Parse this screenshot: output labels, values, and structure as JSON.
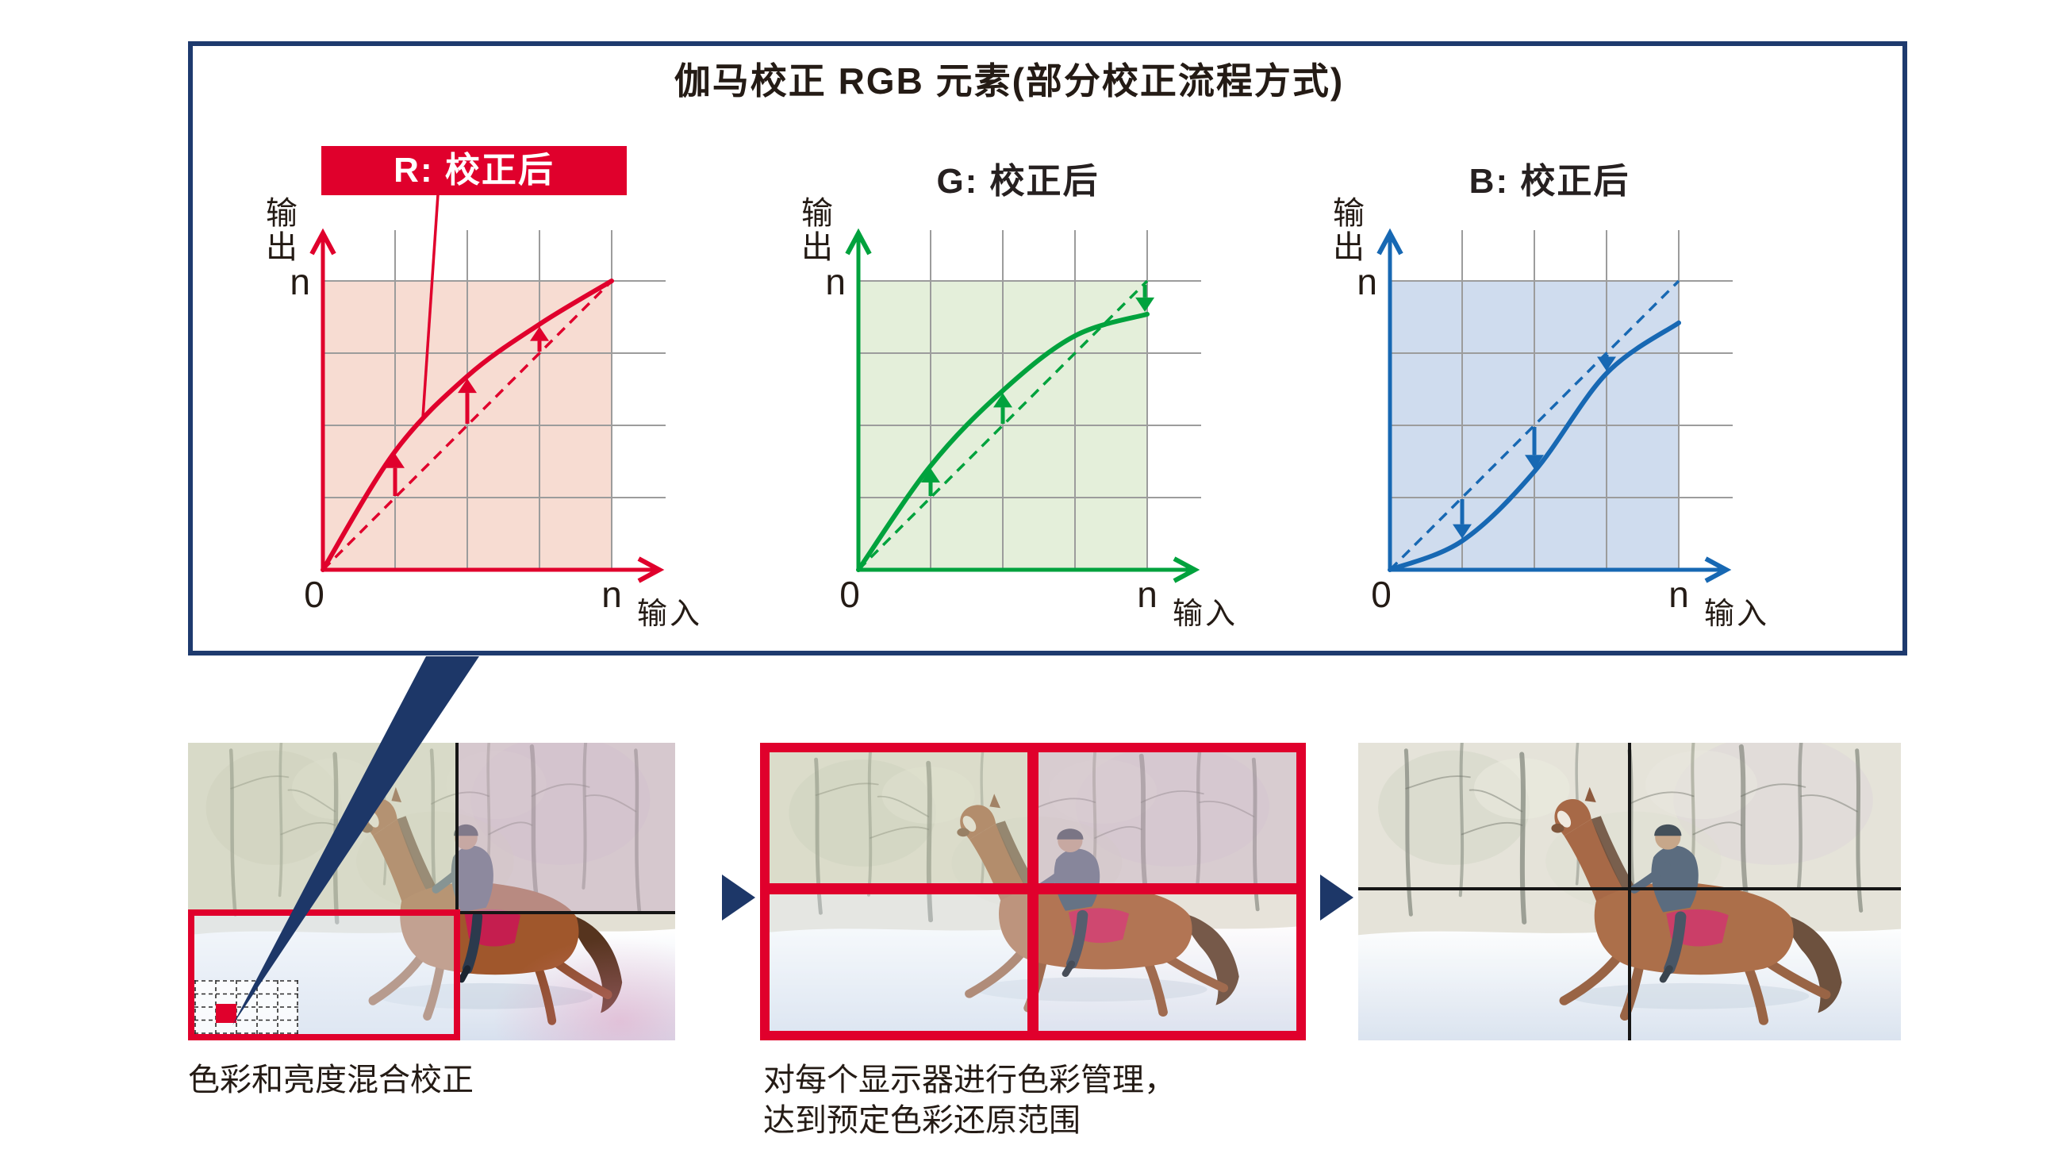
{
  "header": {
    "title": "伽马校正 RGB 元素(部分校正流程方式)"
  },
  "palette": {
    "frame_navy": "#1e3a6e",
    "pointer_navy": "#1d3768",
    "highlight_red": "#e0002c",
    "grid_gray": "#9c9c9c"
  },
  "charts": [
    {
      "channel": "R",
      "label": "R: 校正后",
      "label_style": "red-box",
      "callout": true,
      "y_axis_label": "输出",
      "x_axis_label": "输入",
      "y_max_label": "n",
      "x_max_label": "n",
      "origin_label": "0",
      "curve_color": "#e0002c",
      "fill_color": "#f7dcd2"
    },
    {
      "channel": "G",
      "label": "G: 校正后",
      "label_style": "plain",
      "callout": false,
      "y_axis_label": "输出",
      "x_axis_label": "输入",
      "y_max_label": "n",
      "x_max_label": "n",
      "origin_label": "0",
      "curve_color": "#00a23d",
      "fill_color": "#e4efda"
    },
    {
      "channel": "B",
      "label": "B: 校正后",
      "label_style": "plain",
      "callout": false,
      "y_axis_label": "输出",
      "x_axis_label": "输入",
      "y_max_label": "n",
      "x_max_label": "n",
      "origin_label": "0",
      "curve_color": "#1768b3",
      "fill_color": "#cfdcee"
    }
  ],
  "chart_data": [
    {
      "type": "line",
      "channel": "R",
      "title": "R: 校正后",
      "xlabel": "输入",
      "ylabel": "输出",
      "xlim": [
        "0",
        "n"
      ],
      "ylim": [
        "0",
        "n"
      ],
      "grid": [
        4,
        4
      ],
      "x": [
        0,
        0.25,
        0.5,
        0.75,
        1
      ],
      "series": [
        {
          "name": "校正后曲线",
          "values": [
            0,
            0.41,
            0.67,
            0.85,
            1
          ]
        },
        {
          "name": "参考对角线(虚线)",
          "values": [
            0,
            0.25,
            0.5,
            0.75,
            1
          ]
        }
      ],
      "arrows": [
        {
          "x": 0.25,
          "from": 0.25,
          "to": 0.41
        },
        {
          "x": 0.5,
          "from": 0.5,
          "to": 0.67
        },
        {
          "x": 0.75,
          "from": 0.75,
          "to": 0.85
        }
      ]
    },
    {
      "type": "line",
      "channel": "G",
      "title": "G: 校正后",
      "xlabel": "输入",
      "ylabel": "输出",
      "xlim": [
        "0",
        "n"
      ],
      "ylim": [
        "0",
        "n"
      ],
      "grid": [
        4,
        4
      ],
      "x": [
        0,
        0.25,
        0.5,
        0.75,
        1
      ],
      "series": [
        {
          "name": "校正后曲线",
          "values": [
            0,
            0.36,
            0.62,
            0.81,
            0.885
          ]
        },
        {
          "name": "参考对角线(虚线)",
          "values": [
            0,
            0.25,
            0.5,
            0.75,
            1
          ]
        }
      ],
      "arrows": [
        {
          "x": 0.25,
          "from": 0.25,
          "to": 0.36
        },
        {
          "x": 0.5,
          "from": 0.5,
          "to": 0.62
        },
        {
          "x": 0.992,
          "from": 0.992,
          "to": 0.885
        }
      ]
    },
    {
      "type": "line",
      "channel": "B",
      "title": "B: 校正后",
      "xlabel": "输入",
      "ylabel": "输出",
      "xlim": [
        "0",
        "n"
      ],
      "ylim": [
        "0",
        "n"
      ],
      "grid": [
        4,
        4
      ],
      "x": [
        0,
        0.25,
        0.5,
        0.75,
        1
      ],
      "series": [
        {
          "name": "校正后曲线",
          "values": [
            0,
            0.1,
            0.34,
            0.68,
            0.855
          ]
        },
        {
          "name": "参考对角线(虚线)",
          "values": [
            0,
            0.25,
            0.5,
            0.75,
            1
          ]
        }
      ],
      "arrows": [
        {
          "x": 0.25,
          "from": 0.25,
          "to": 0.1
        },
        {
          "x": 0.5,
          "from": 0.5,
          "to": 0.34
        },
        {
          "x": 0.75,
          "from": 0.75,
          "to": 0.68
        }
      ]
    }
  ],
  "flow": {
    "steps": [
      {
        "caption_line1": "色彩和亮度混合校正",
        "caption_line2": ""
      },
      {
        "caption_line1": "对每个显示器进行色彩管理，",
        "caption_line2": "达到预定色彩还原范围"
      },
      {
        "caption_line1": "",
        "caption_line2": ""
      }
    ]
  }
}
